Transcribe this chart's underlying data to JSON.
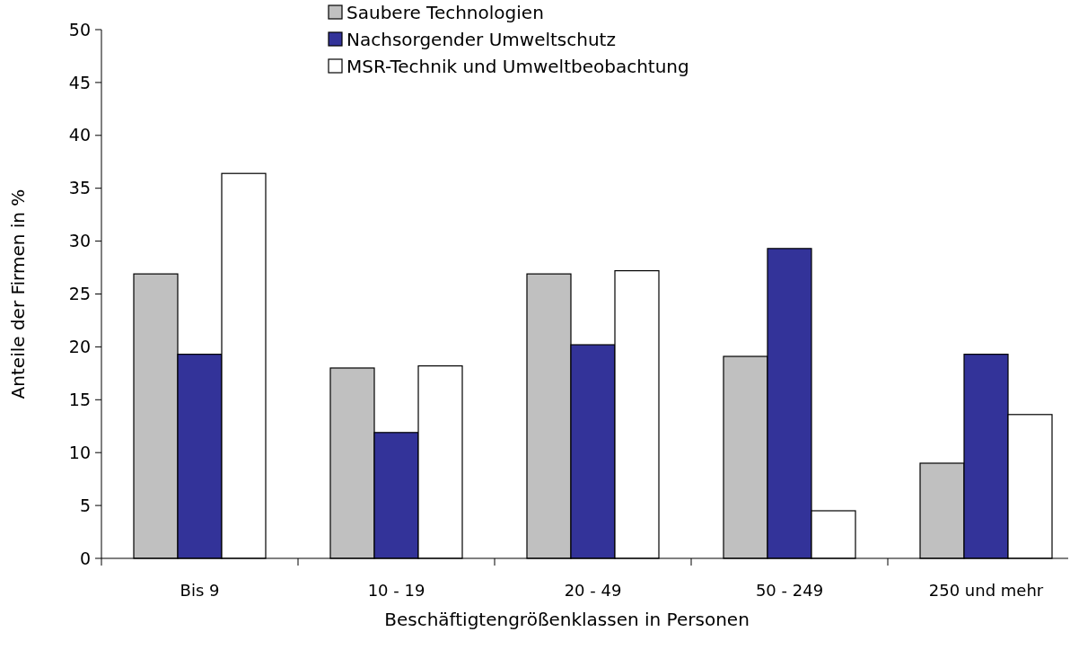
{
  "chart_data": {
    "type": "bar",
    "xlabel": "Beschäftigtengrößenklassen in Personen",
    "ylabel": "Anteile der Firmen in %",
    "categories": [
      "Bis 9",
      "10 - 19",
      "20 - 49",
      "50 - 249",
      "250 und mehr"
    ],
    "series": [
      {
        "name": "Saubere Technologien",
        "color": "#c0c0c0",
        "values": [
          26.9,
          18.0,
          26.9,
          19.1,
          9.0
        ]
      },
      {
        "name": "Nachsorgender Umweltschutz",
        "color": "#333399",
        "values": [
          19.3,
          11.9,
          20.2,
          29.3,
          19.3
        ]
      },
      {
        "name": "MSR-Technik und Umweltbeobachtung",
        "color": "#ffffff",
        "values": [
          36.4,
          18.2,
          27.2,
          4.5,
          13.6
        ]
      }
    ],
    "ylim": [
      0,
      50
    ],
    "yticks": [
      0,
      5,
      10,
      15,
      20,
      25,
      30,
      35,
      40,
      45,
      50
    ],
    "grid": false,
    "legend": "top"
  }
}
